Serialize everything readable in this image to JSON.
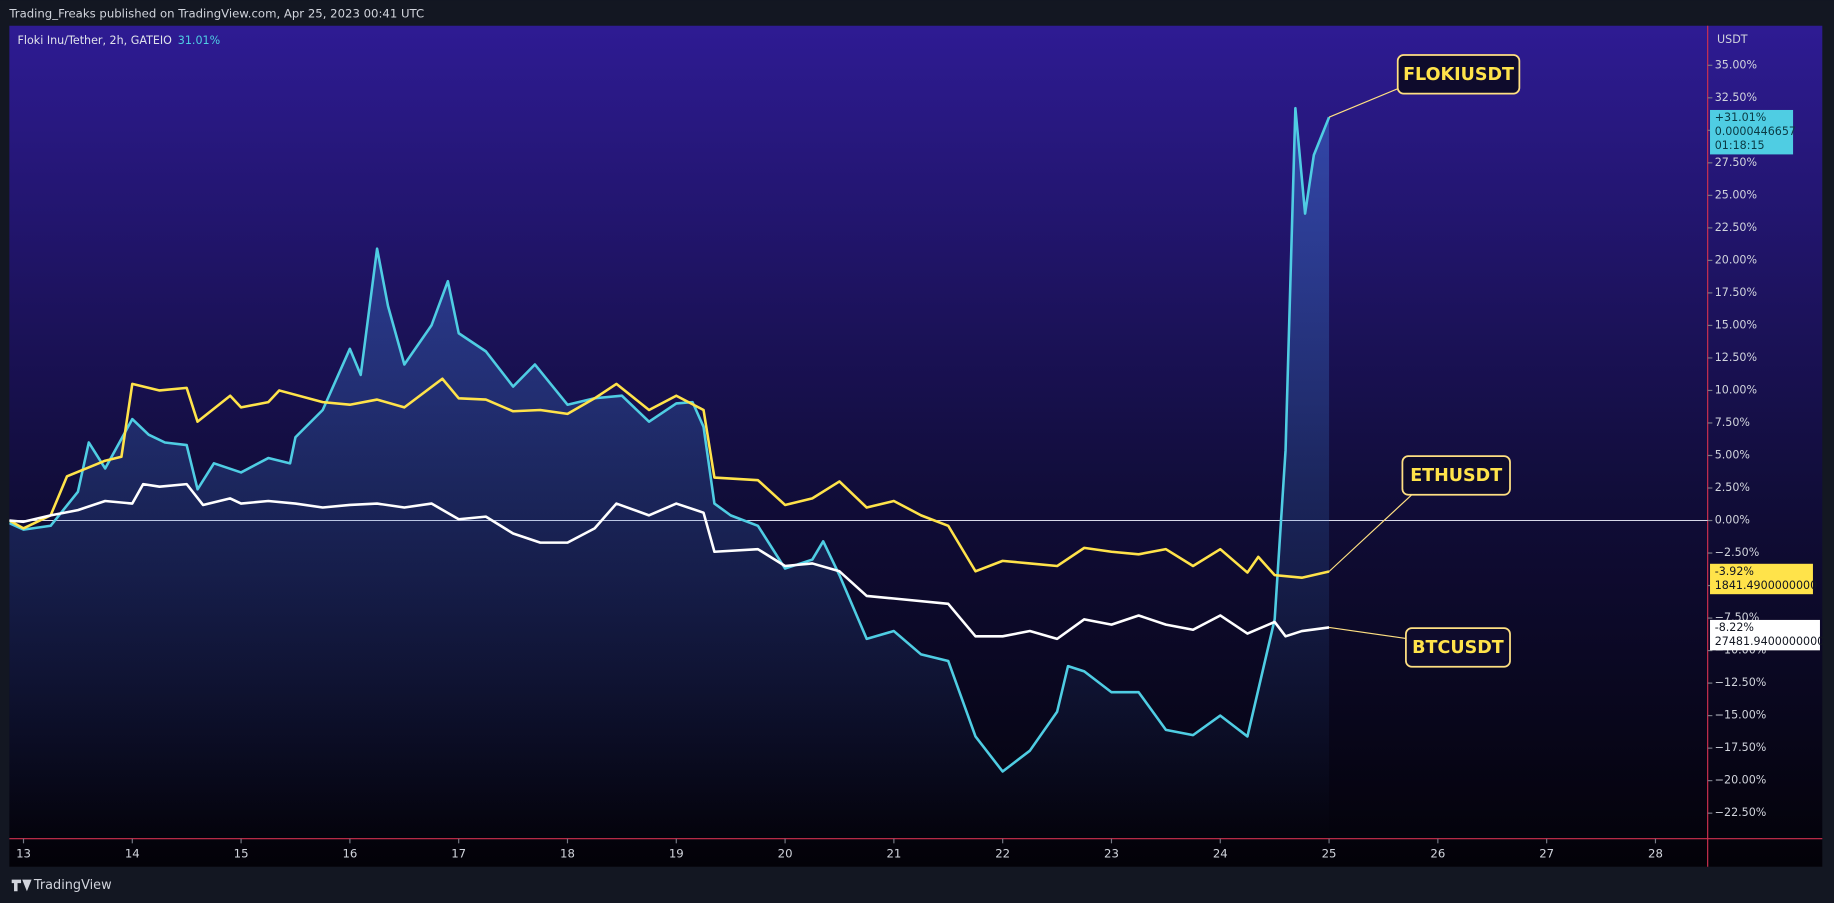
{
  "chart_data": {
    "type": "line",
    "publisher": "Trading_Freaks published on TradingView.com, Apr 25, 2023 00:41 UTC",
    "symbol": "Floki Inu/Tether, 2h, GATEIO",
    "change": "31.01%",
    "axis_unit": "USDT",
    "brand": "TradingView",
    "xlim": [
      12.87,
      28.48
    ],
    "xticks": [
      13,
      14,
      15,
      16,
      17,
      18,
      19,
      20,
      21,
      22,
      23,
      24,
      25,
      26,
      27,
      28
    ],
    "ylim": [
      -24.46,
      38.04
    ],
    "yticks": [
      {
        "value": -22.5,
        "label": "−22.50%"
      },
      {
        "value": -20,
        "label": "−20.00%"
      },
      {
        "value": -17.5,
        "label": "−17.50%"
      },
      {
        "value": -15,
        "label": "−15.00%"
      },
      {
        "value": -12.5,
        "label": "−12.50%"
      },
      {
        "value": -10,
        "label": "−10.00%"
      },
      {
        "value": -7.5,
        "label": "−7.50%"
      },
      {
        "value": -5,
        "label": "−5.00%"
      },
      {
        "value": -2.5,
        "label": "−2.50%"
      },
      {
        "value": 0,
        "label": "0.00%"
      },
      {
        "value": 2.5,
        "label": "2.50%"
      },
      {
        "value": 5,
        "label": "5.00%"
      },
      {
        "value": 7.5,
        "label": "7.50%"
      },
      {
        "value": 10,
        "label": "10.00%"
      },
      {
        "value": 12.5,
        "label": "12.50%"
      },
      {
        "value": 15,
        "label": "15.00%"
      },
      {
        "value": 17.5,
        "label": "17.50%"
      },
      {
        "value": 20,
        "label": "20.00%"
      },
      {
        "value": 22.5,
        "label": "22.50%"
      },
      {
        "value": 25,
        "label": "25.00%"
      },
      {
        "value": 27.5,
        "label": "27.50%"
      },
      {
        "value": 30,
        "label": "30.00%"
      },
      {
        "value": 32.5,
        "label": "32.50%"
      },
      {
        "value": 35,
        "label": "35.00%"
      }
    ],
    "series": [
      {
        "name": "FLOKIUSDT",
        "color": "#4fcde3",
        "last_label": "+31.01%",
        "price": "0.0000446657",
        "countdown": "01:18:15",
        "x": [
          12.87,
          13,
          13.25,
          13.5,
          13.6,
          13.75,
          14,
          14.15,
          14.3,
          14.5,
          14.6,
          14.75,
          15,
          15.25,
          15.45,
          15.5,
          15.75,
          16,
          16.1,
          16.25,
          16.35,
          16.5,
          16.75,
          16.9,
          17,
          17.25,
          17.5,
          17.7,
          18,
          18.25,
          18.5,
          18.75,
          19,
          19.15,
          19.25,
          19.35,
          19.5,
          19.75,
          20,
          20.25,
          20.35,
          20.5,
          20.75,
          21,
          21.25,
          21.5,
          21.75,
          22,
          22.25,
          22.5,
          22.6,
          22.75,
          23,
          23.25,
          23.5,
          23.75,
          24,
          24.25,
          24.5,
          24.6,
          24.69,
          24.78,
          24.86,
          25
        ],
        "values": [
          -0.2,
          -0.7,
          -0.4,
          2.2,
          6.0,
          4.0,
          7.8,
          6.6,
          6.0,
          5.8,
          2.4,
          4.4,
          3.7,
          4.8,
          4.4,
          6.4,
          8.5,
          13.2,
          11.2,
          20.9,
          16.5,
          12.0,
          15.0,
          18.4,
          14.4,
          13.0,
          10.3,
          12.0,
          8.9,
          9.4,
          9.6,
          7.6,
          9.0,
          9.1,
          7.2,
          1.3,
          0.4,
          -0.4,
          -3.7,
          -3.0,
          -1.6,
          -4.2,
          -9.1,
          -8.5,
          -10.3,
          -10.8,
          -16.6,
          -19.3,
          -17.7,
          -14.7,
          -11.2,
          -11.6,
          -13.2,
          -13.2,
          -16.1,
          -16.5,
          -15.0,
          -16.6,
          -7.6,
          5.4,
          31.7,
          23.6,
          28.1,
          31.01
        ]
      },
      {
        "name": "ETHUSDT",
        "color": "#ffe34a",
        "last_label": "-3.92%",
        "price": "1841.4900000000",
        "x": [
          12.87,
          13,
          13.25,
          13.4,
          13.75,
          13.9,
          14,
          14.25,
          14.5,
          14.6,
          14.9,
          15,
          15.25,
          15.35,
          15.75,
          16,
          16.25,
          16.5,
          16.85,
          17,
          17.25,
          17.5,
          17.75,
          18,
          18.25,
          18.45,
          18.75,
          19,
          19.25,
          19.35,
          19.75,
          20,
          20.25,
          20.5,
          20.75,
          21,
          21.25,
          21.5,
          21.75,
          22,
          22.25,
          22.5,
          22.75,
          23,
          23.25,
          23.5,
          23.75,
          24,
          24.25,
          24.35,
          24.5,
          24.75,
          25
        ],
        "values": [
          0.0,
          -0.6,
          0.4,
          3.4,
          4.6,
          4.9,
          10.5,
          10.0,
          10.2,
          7.6,
          9.6,
          8.7,
          9.1,
          10.0,
          9.1,
          8.9,
          9.3,
          8.7,
          10.9,
          9.4,
          9.3,
          8.4,
          8.5,
          8.2,
          9.4,
          10.5,
          8.5,
          9.6,
          8.5,
          3.3,
          3.1,
          1.2,
          1.7,
          3.0,
          1.0,
          1.5,
          0.4,
          -0.4,
          -3.9,
          -3.1,
          -3.3,
          -3.5,
          -2.1,
          -2.4,
          -2.6,
          -2.2,
          -3.5,
          -2.2,
          -4.0,
          -2.8,
          -4.2,
          -4.4,
          -3.92
        ]
      },
      {
        "name": "BTCUSDT",
        "color": "#ffffff",
        "last_label": "-8.22%",
        "price": "27481.9400000000",
        "x": [
          12.87,
          13,
          13.25,
          13.5,
          13.75,
          14,
          14.1,
          14.25,
          14.5,
          14.65,
          14.9,
          15,
          15.25,
          15.5,
          15.75,
          16,
          16.25,
          16.5,
          16.75,
          17,
          17.25,
          17.5,
          17.75,
          18,
          18.25,
          18.45,
          18.75,
          19,
          19.25,
          19.35,
          19.75,
          20,
          20.25,
          20.5,
          20.75,
          21,
          21.5,
          21.75,
          22,
          22.25,
          22.5,
          22.75,
          23,
          23.25,
          23.5,
          23.75,
          24,
          24.25,
          24.5,
          24.6,
          24.75,
          25
        ],
        "values": [
          0.0,
          -0.1,
          0.4,
          0.8,
          1.5,
          1.3,
          2.8,
          2.6,
          2.8,
          1.2,
          1.7,
          1.3,
          1.5,
          1.3,
          1.0,
          1.2,
          1.3,
          1.0,
          1.3,
          0.1,
          0.3,
          -1.0,
          -1.7,
          -1.7,
          -0.6,
          1.3,
          0.4,
          1.3,
          0.6,
          -2.4,
          -2.2,
          -3.5,
          -3.3,
          -3.9,
          -5.8,
          -6.0,
          -6.4,
          -8.9,
          -8.9,
          -8.5,
          -9.1,
          -7.6,
          -8.0,
          -7.3,
          -8.0,
          -8.4,
          -7.3,
          -8.7,
          -7.8,
          -8.9,
          -8.5,
          -8.22
        ]
      }
    ]
  }
}
